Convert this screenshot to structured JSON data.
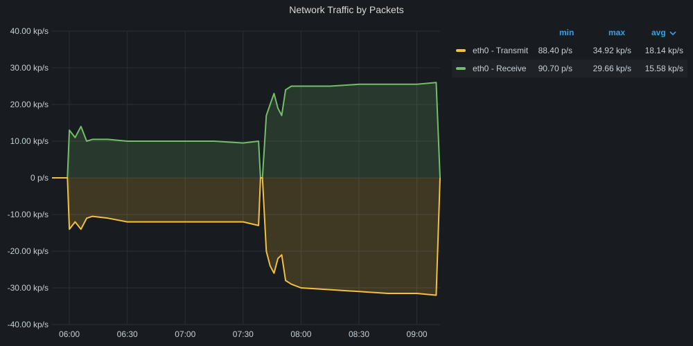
{
  "panel": {
    "title": "Network Traffic by Packets"
  },
  "legend": {
    "columns": {
      "min": "min",
      "max": "max",
      "avg": "avg"
    },
    "sort_icon": "chevron-down-icon",
    "rows": [
      {
        "name": "eth0 - Transmit",
        "color": "#f2c13e",
        "min": "88.40 p/s",
        "max": "34.92 kp/s",
        "avg": "18.14 kp/s"
      },
      {
        "name": "eth0 - Receive",
        "color": "#73bf69",
        "min": "90.70 p/s",
        "max": "29.66 kp/s",
        "avg": "15.58 kp/s"
      }
    ]
  },
  "chart_data": {
    "type": "area",
    "title": "Network Traffic by Packets",
    "xlabel": "",
    "ylabel": "",
    "x_ticks": [
      "06:00",
      "06:30",
      "07:00",
      "07:30",
      "08:00",
      "08:30",
      "09:00"
    ],
    "y_ticks": [
      "40.00 kp/s",
      "30.00 kp/s",
      "20.00 kp/s",
      "10.00 kp/s",
      "0 p/s",
      "-10.00 kp/s",
      "-20.00 kp/s",
      "-30.00 kp/s",
      "-40.00 kp/s"
    ],
    "ylim": [
      -40,
      40
    ],
    "y_unit": "kp/s",
    "x_range": [
      "05:51",
      "09:12"
    ],
    "grid": true,
    "legend_position": "right",
    "series": [
      {
        "name": "eth0 - Receive",
        "color": "#73bf69",
        "x": [
          "05:51",
          "05:59",
          "06:00",
          "06:03",
          "06:06",
          "06:09",
          "06:12",
          "06:20",
          "06:30",
          "06:45",
          "07:00",
          "07:15",
          "07:30",
          "07:38",
          "07:39",
          "07:40",
          "07:42",
          "07:44",
          "07:46",
          "07:48",
          "07:50",
          "07:52",
          "07:55",
          "08:00",
          "08:15",
          "08:30",
          "08:45",
          "09:00",
          "09:10",
          "09:12"
        ],
        "values": [
          0,
          0,
          13,
          11,
          14,
          10,
          10.5,
          10.5,
          10,
          10,
          10,
          10,
          9.5,
          10,
          0,
          0,
          17,
          20,
          23,
          19,
          17,
          24,
          25,
          25,
          25,
          25.5,
          25.5,
          25.5,
          26,
          0
        ]
      },
      {
        "name": "eth0 - Transmit",
        "color": "#f2c13e",
        "x": [
          "05:51",
          "05:59",
          "06:00",
          "06:03",
          "06:06",
          "06:09",
          "06:12",
          "06:20",
          "06:30",
          "06:45",
          "07:00",
          "07:15",
          "07:30",
          "07:38",
          "07:39",
          "07:40",
          "07:42",
          "07:44",
          "07:46",
          "07:48",
          "07:50",
          "07:52",
          "07:55",
          "08:00",
          "08:15",
          "08:30",
          "08:45",
          "09:00",
          "09:10",
          "09:12"
        ],
        "values": [
          0,
          0,
          -14,
          -12,
          -14,
          -11,
          -10.5,
          -11,
          -12,
          -12,
          -12,
          -12,
          -12,
          -13,
          0,
          0,
          -20,
          -24,
          -26,
          -22,
          -21,
          -28,
          -29,
          -30,
          -30.5,
          -31,
          -31.5,
          -31.5,
          -32,
          0
        ]
      }
    ]
  }
}
